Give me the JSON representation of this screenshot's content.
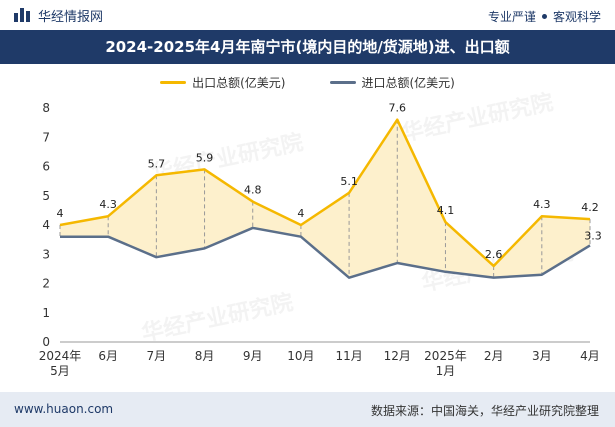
{
  "header": {
    "brand": "华经情报网",
    "tagline_left": "专业严谨",
    "tagline_right": "客观科学"
  },
  "chart_data": {
    "type": "line",
    "title": "2024-2025年4月年南宁市(境内目的地/货源地)进、出口额",
    "categories": [
      "2024年\n5月",
      "6月",
      "7月",
      "8月",
      "9月",
      "10月",
      "11月",
      "12月",
      "2025年\n1月",
      "2月",
      "3月",
      "4月"
    ],
    "series": [
      {
        "name": "出口总额(亿美元)",
        "values": [
          4,
          4.3,
          5.7,
          5.9,
          4.8,
          4,
          5.1,
          7.6,
          4.1,
          2.6,
          4.3,
          4.2
        ],
        "color": "#f5b800",
        "labels": [
          "4",
          "4.3",
          "5.7",
          "5.9",
          "4.8",
          "4",
          "5.1",
          "7.6",
          "4.1",
          "2.6",
          "4.3",
          "4.2"
        ]
      },
      {
        "name": "进口总额(亿美元)",
        "values": [
          3.6,
          3.6,
          2.9,
          3.2,
          3.9,
          3.6,
          2.2,
          2.7,
          2.4,
          2.2,
          2.3,
          3.3
        ],
        "color": "#5b6f8a",
        "labels": [
          "",
          "",
          "",
          "",
          "",
          "",
          "",
          "",
          "",
          "",
          "",
          "3.3"
        ]
      }
    ],
    "ylim": [
      0,
      8
    ],
    "yticks": [
      "0",
      "1",
      "2",
      "3",
      "4",
      "5",
      "6",
      "7",
      "8"
    ],
    "fill_between": "#fdf0cc",
    "legend_position": "top"
  },
  "footer": {
    "website": "www.huaon.com",
    "source": "数据来源：中国海关，华经产业研究院整理"
  }
}
